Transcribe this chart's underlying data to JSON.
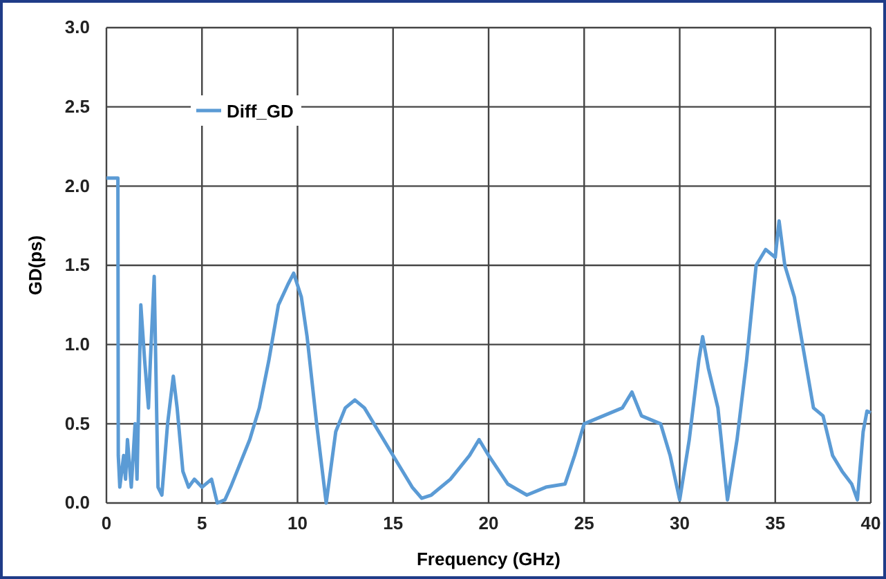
{
  "chart_data": {
    "type": "line",
    "xlabel": "Frequency (GHz)",
    "ylabel": "GD(ps)",
    "xlim": [
      0,
      40
    ],
    "xticks": [
      0,
      5,
      10,
      15,
      20,
      25,
      30,
      35,
      40
    ],
    "ylim": [
      0,
      3
    ],
    "yticks": [
      {
        "value": 0,
        "label": "0.0"
      },
      {
        "value": 0.5,
        "label": "0.5"
      },
      {
        "value": 1,
        "label": "1.0"
      },
      {
        "value": 1.5,
        "label": "1.5"
      },
      {
        "value": 2,
        "label": "2.0"
      },
      {
        "value": 2.5,
        "label": "2.5"
      },
      {
        "value": 3,
        "label": "3.0"
      }
    ],
    "grid": true,
    "legend": "top left",
    "x": [
      0,
      0.6,
      0.62,
      0.7,
      0.9,
      1.0,
      1.1,
      1.3,
      1.5,
      1.6,
      1.8,
      2.0,
      2.1,
      2.2,
      2.3,
      2.5,
      2.7,
      2.9,
      3.2,
      3.5,
      3.7,
      4.0,
      4.3,
      4.6,
      5.0,
      5.5,
      5.8,
      6.2,
      6.5,
      7.0,
      7.5,
      8.0,
      8.5,
      9.0,
      9.5,
      9.8,
      10.2,
      10.5,
      11.0,
      11.5,
      12.0,
      12.5,
      13.0,
      13.5,
      14.0,
      15.0,
      16.0,
      16.5,
      17.0,
      18.0,
      19.0,
      19.5,
      20.0,
      21.0,
      22.0,
      23.0,
      24.0,
      24.5,
      25.0,
      26.0,
      27.0,
      27.5,
      28.0,
      29.0,
      29.5,
      30.0,
      30.5,
      31.0,
      31.2,
      31.5,
      32.0,
      32.5,
      33.0,
      33.5,
      34.0,
      34.5,
      35.0,
      35.2,
      35.5,
      36.0,
      36.5,
      37.0,
      37.5,
      38.0,
      38.5,
      39.0,
      39.3,
      39.6,
      39.8,
      40
    ],
    "series": [
      {
        "name": "Diff_GD",
        "color": "#5b9bd5",
        "values": [
          2.05,
          2.05,
          0.3,
          0.1,
          0.3,
          0.15,
          0.4,
          0.1,
          0.5,
          0.15,
          1.25,
          0.9,
          0.75,
          0.6,
          0.9,
          1.43,
          0.1,
          0.05,
          0.5,
          0.8,
          0.6,
          0.2,
          0.1,
          0.15,
          0.1,
          0.15,
          0.0,
          0.02,
          0.1,
          0.25,
          0.4,
          0.6,
          0.9,
          1.25,
          1.38,
          1.45,
          1.3,
          1.05,
          0.5,
          0.0,
          0.45,
          0.6,
          0.65,
          0.6,
          0.5,
          0.3,
          0.1,
          0.03,
          0.05,
          0.15,
          0.3,
          0.4,
          0.3,
          0.12,
          0.05,
          0.1,
          0.12,
          0.3,
          0.5,
          0.55,
          0.6,
          0.7,
          0.55,
          0.5,
          0.3,
          0.02,
          0.4,
          0.9,
          1.05,
          0.85,
          0.6,
          0.02,
          0.4,
          0.9,
          1.5,
          1.6,
          1.55,
          1.78,
          1.5,
          1.3,
          0.95,
          0.6,
          0.55,
          0.3,
          0.2,
          0.12,
          0.02,
          0.45,
          0.58,
          0.57
        ]
      }
    ]
  }
}
